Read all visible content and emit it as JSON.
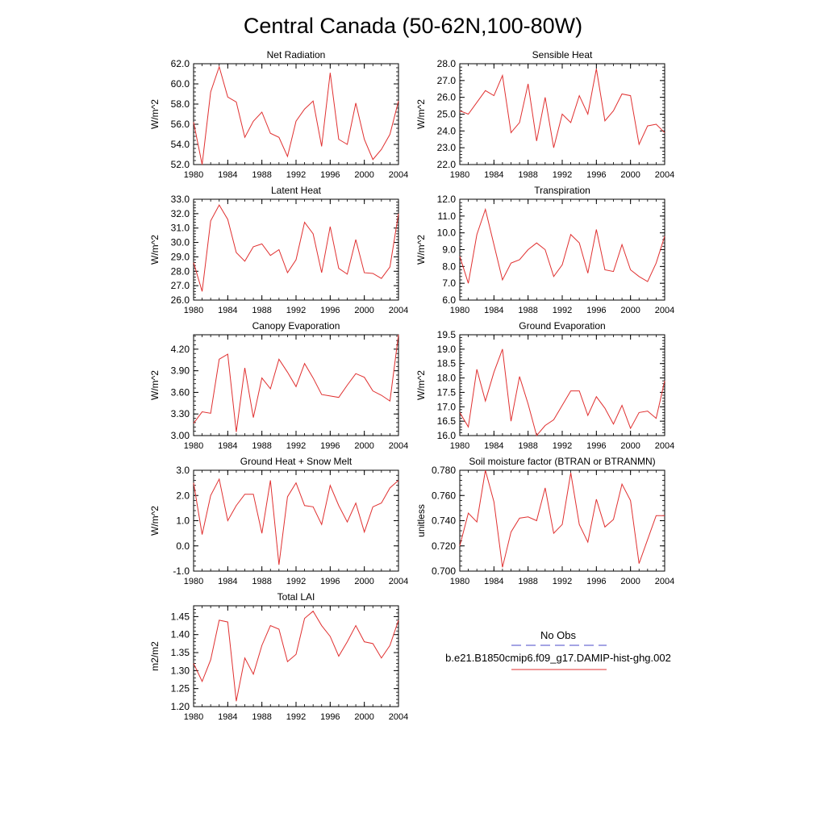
{
  "title": "Central Canada (50-62N,100-80W)",
  "legend": {
    "obs_label": "No Obs",
    "obs_color": "#4a4ac8",
    "model_label": "b.e21.B1850cmip6.f09_g17.DAMIP-hist-ghg.002",
    "model_color": "#e03030"
  },
  "chart_data": [
    {
      "type": "line",
      "title": "Net Radiation",
      "ylabel": "W/m^2",
      "xlim": [
        1980,
        2004
      ],
      "ylim": [
        52.0,
        62.0
      ],
      "xticks": [
        1980,
        1984,
        1988,
        1992,
        1996,
        2000,
        2004
      ],
      "yticks": [
        "52.0",
        "54.0",
        "56.0",
        "58.0",
        "60.0",
        "62.0"
      ],
      "series": [
        {
          "x": [
            1980,
            1981,
            1982,
            1983,
            1984,
            1985,
            1986,
            1987,
            1988,
            1989,
            1990,
            1991,
            1992,
            1993,
            1994,
            1995,
            1996,
            1997,
            1998,
            1999,
            2000,
            2001,
            2002,
            2003,
            2004
          ],
          "values": [
            56.2,
            52.0,
            59.2,
            61.7,
            58.7,
            58.2,
            54.7,
            56.3,
            57.2,
            55.1,
            54.7,
            52.8,
            56.3,
            57.5,
            58.3,
            53.8,
            61.1,
            54.5,
            54.0,
            58.1,
            54.5,
            52.5,
            53.5,
            55.0,
            58.3
          ],
          "color": "#e03030"
        }
      ]
    },
    {
      "type": "line",
      "title": "Sensible Heat",
      "ylabel": "W/m^2",
      "xlim": [
        1980,
        2004
      ],
      "ylim": [
        22.0,
        28.0
      ],
      "xticks": [
        1980,
        1984,
        1988,
        1992,
        1996,
        2000,
        2004
      ],
      "yticks": [
        "22.0",
        "23.0",
        "24.0",
        "25.0",
        "26.0",
        "27.0",
        "28.0"
      ],
      "series": [
        {
          "x": [
            1980,
            1981,
            1982,
            1983,
            1984,
            1985,
            1986,
            1987,
            1988,
            1989,
            1990,
            1991,
            1992,
            1993,
            1994,
            1995,
            1996,
            1997,
            1998,
            1999,
            2000,
            2001,
            2002,
            2003,
            2004
          ],
          "values": [
            25.2,
            25.0,
            25.7,
            26.4,
            26.1,
            27.3,
            23.9,
            24.5,
            26.8,
            23.4,
            26.0,
            23.0,
            25.0,
            24.5,
            26.1,
            25.0,
            27.7,
            24.6,
            25.2,
            26.2,
            26.1,
            23.2,
            24.3,
            24.4,
            23.9
          ],
          "color": "#e03030"
        }
      ]
    },
    {
      "type": "line",
      "title": "Latent Heat",
      "ylabel": "W/m^2",
      "xlim": [
        1980,
        2004
      ],
      "ylim": [
        26.0,
        33.0
      ],
      "xticks": [
        1980,
        1984,
        1988,
        1992,
        1996,
        2000,
        2004
      ],
      "yticks": [
        "26.0",
        "27.0",
        "28.0",
        "29.0",
        "30.0",
        "31.0",
        "32.0",
        "33.0"
      ],
      "series": [
        {
          "x": [
            1980,
            1981,
            1982,
            1983,
            1984,
            1985,
            1986,
            1987,
            1988,
            1989,
            1990,
            1991,
            1992,
            1993,
            1994,
            1995,
            1996,
            1997,
            1998,
            1999,
            2000,
            2001,
            2002,
            2003,
            2004
          ],
          "values": [
            28.6,
            26.6,
            31.5,
            32.6,
            31.6,
            29.3,
            28.7,
            29.7,
            29.9,
            29.1,
            29.5,
            27.9,
            28.8,
            31.4,
            30.6,
            27.9,
            31.1,
            28.2,
            27.8,
            30.2,
            27.9,
            27.85,
            27.5,
            28.3,
            32.0
          ],
          "color": "#e03030"
        }
      ]
    },
    {
      "type": "line",
      "title": "Transpiration",
      "ylabel": "W/m^2",
      "xlim": [
        1980,
        2004
      ],
      "ylim": [
        6.0,
        12.0
      ],
      "xticks": [
        1980,
        1984,
        1988,
        1992,
        1996,
        2000,
        2004
      ],
      "yticks": [
        "6.0",
        "7.0",
        "8.0",
        "9.0",
        "10.0",
        "11.0",
        "12.0"
      ],
      "series": [
        {
          "x": [
            1980,
            1981,
            1982,
            1983,
            1984,
            1985,
            1986,
            1987,
            1988,
            1989,
            1990,
            1991,
            1992,
            1993,
            1994,
            1995,
            1996,
            1997,
            1998,
            1999,
            2000,
            2001,
            2002,
            2003,
            2004
          ],
          "values": [
            8.6,
            7.0,
            9.9,
            11.4,
            9.3,
            7.2,
            8.2,
            8.4,
            9.0,
            9.4,
            9.0,
            7.4,
            8.1,
            9.9,
            9.4,
            7.6,
            10.2,
            7.8,
            7.7,
            9.3,
            7.8,
            7.4,
            7.1,
            8.2,
            9.8
          ],
          "color": "#e03030"
        }
      ]
    },
    {
      "type": "line",
      "title": "Canopy Evaporation",
      "ylabel": "W/m^2",
      "xlim": [
        1980,
        2004
      ],
      "ylim": [
        3.0,
        4.4
      ],
      "xticks": [
        1980,
        1984,
        1988,
        1992,
        1996,
        2000,
        2004
      ],
      "yticks": [
        "3.00",
        "3.30",
        "3.60",
        "3.90",
        "4.20"
      ],
      "series": [
        {
          "x": [
            1980,
            1981,
            1982,
            1983,
            1984,
            1985,
            1986,
            1987,
            1988,
            1989,
            1990,
            1991,
            1992,
            1993,
            1994,
            1995,
            1996,
            1997,
            1998,
            1999,
            2000,
            2001,
            2002,
            2003,
            2004
          ],
          "values": [
            3.17,
            3.33,
            3.31,
            4.06,
            4.13,
            3.05,
            3.94,
            3.25,
            3.8,
            3.65,
            4.06,
            3.88,
            3.68,
            4.0,
            3.8,
            3.57,
            3.55,
            3.53,
            3.7,
            3.86,
            3.81,
            3.62,
            3.56,
            3.48,
            4.4
          ],
          "color": "#e03030"
        }
      ]
    },
    {
      "type": "line",
      "title": "Ground Evaporation",
      "ylabel": "W/m^2",
      "xlim": [
        1980,
        2004
      ],
      "ylim": [
        16.0,
        19.5
      ],
      "xticks": [
        1980,
        1984,
        1988,
        1992,
        1996,
        2000,
        2004
      ],
      "yticks": [
        "16.0",
        "16.5",
        "17.0",
        "17.5",
        "18.0",
        "18.5",
        "19.0",
        "19.5"
      ],
      "series": [
        {
          "x": [
            1980,
            1981,
            1982,
            1983,
            1984,
            1985,
            1986,
            1987,
            1988,
            1989,
            1990,
            1991,
            1992,
            1993,
            1994,
            1995,
            1996,
            1997,
            1998,
            1999,
            2000,
            2001,
            2002,
            2003,
            2004
          ],
          "values": [
            16.8,
            16.3,
            18.3,
            17.2,
            18.2,
            19.0,
            16.5,
            18.05,
            17.1,
            16.0,
            16.35,
            16.55,
            17.05,
            17.55,
            17.55,
            16.7,
            17.35,
            16.95,
            16.4,
            17.05,
            16.25,
            16.8,
            16.85,
            16.6,
            17.9
          ],
          "color": "#e03030"
        }
      ]
    },
    {
      "type": "line",
      "title": "Ground Heat + Snow Melt",
      "ylabel": "W/m^2",
      "xlim": [
        1980,
        2004
      ],
      "ylim": [
        -1.0,
        3.0
      ],
      "xticks": [
        1980,
        1984,
        1988,
        1992,
        1996,
        2000,
        2004
      ],
      "yticks": [
        "-1.0",
        "0.0",
        "1.0",
        "2.0",
        "3.0"
      ],
      "series": [
        {
          "x": [
            1980,
            1981,
            1982,
            1983,
            1984,
            1985,
            1986,
            1987,
            1988,
            1989,
            1990,
            1991,
            1992,
            1993,
            1994,
            1995,
            1996,
            1997,
            1998,
            1999,
            2000,
            2001,
            2002,
            2003,
            2004
          ],
          "values": [
            2.5,
            0.45,
            2.0,
            2.65,
            1.0,
            1.6,
            2.05,
            2.05,
            0.5,
            2.6,
            -0.75,
            1.95,
            2.5,
            1.6,
            1.55,
            0.85,
            2.4,
            1.6,
            0.95,
            1.7,
            0.55,
            1.55,
            1.7,
            2.3,
            2.6
          ],
          "color": "#e03030"
        }
      ]
    },
    {
      "type": "line",
      "title": "Soil moisture factor (BTRAN or BTRANMN)",
      "ylabel": "unitless",
      "xlim": [
        1980,
        2004
      ],
      "ylim": [
        0.7,
        0.78
      ],
      "xticks": [
        1980,
        1984,
        1988,
        1992,
        1996,
        2000,
        2004
      ],
      "yticks": [
        "0.700",
        "0.720",
        "0.740",
        "0.760",
        "0.780"
      ],
      "series": [
        {
          "x": [
            1980,
            1981,
            1982,
            1983,
            1984,
            1985,
            1986,
            1987,
            1988,
            1989,
            1990,
            1991,
            1992,
            1993,
            1994,
            1995,
            1996,
            1997,
            1998,
            1999,
            2000,
            2001,
            2002,
            2003,
            2004
          ],
          "values": [
            0.72,
            0.746,
            0.739,
            0.78,
            0.755,
            0.703,
            0.731,
            0.742,
            0.743,
            0.74,
            0.766,
            0.73,
            0.737,
            0.778,
            0.737,
            0.723,
            0.757,
            0.735,
            0.741,
            0.769,
            0.756,
            0.706,
            0.725,
            0.744,
            0.744
          ],
          "color": "#e03030"
        }
      ]
    },
    {
      "type": "line",
      "title": "Total LAI",
      "ylabel": "m2/m2",
      "xlim": [
        1980,
        2004
      ],
      "ylim": [
        1.2,
        1.48
      ],
      "xticks": [
        1980,
        1984,
        1988,
        1992,
        1996,
        2000,
        2004
      ],
      "yticks": [
        "1.20",
        "1.25",
        "1.30",
        "1.35",
        "1.40",
        "1.45"
      ],
      "series": [
        {
          "x": [
            1980,
            1981,
            1982,
            1983,
            1984,
            1985,
            1986,
            1987,
            1988,
            1989,
            1990,
            1991,
            1992,
            1993,
            1994,
            1995,
            1996,
            1997,
            1998,
            1999,
            2000,
            2001,
            2002,
            2003,
            2004
          ],
          "values": [
            1.32,
            1.27,
            1.33,
            1.44,
            1.435,
            1.215,
            1.335,
            1.29,
            1.37,
            1.425,
            1.415,
            1.325,
            1.345,
            1.445,
            1.465,
            1.425,
            1.395,
            1.34,
            1.38,
            1.425,
            1.38,
            1.375,
            1.335,
            1.37,
            1.44
          ],
          "color": "#e03030"
        }
      ]
    }
  ]
}
